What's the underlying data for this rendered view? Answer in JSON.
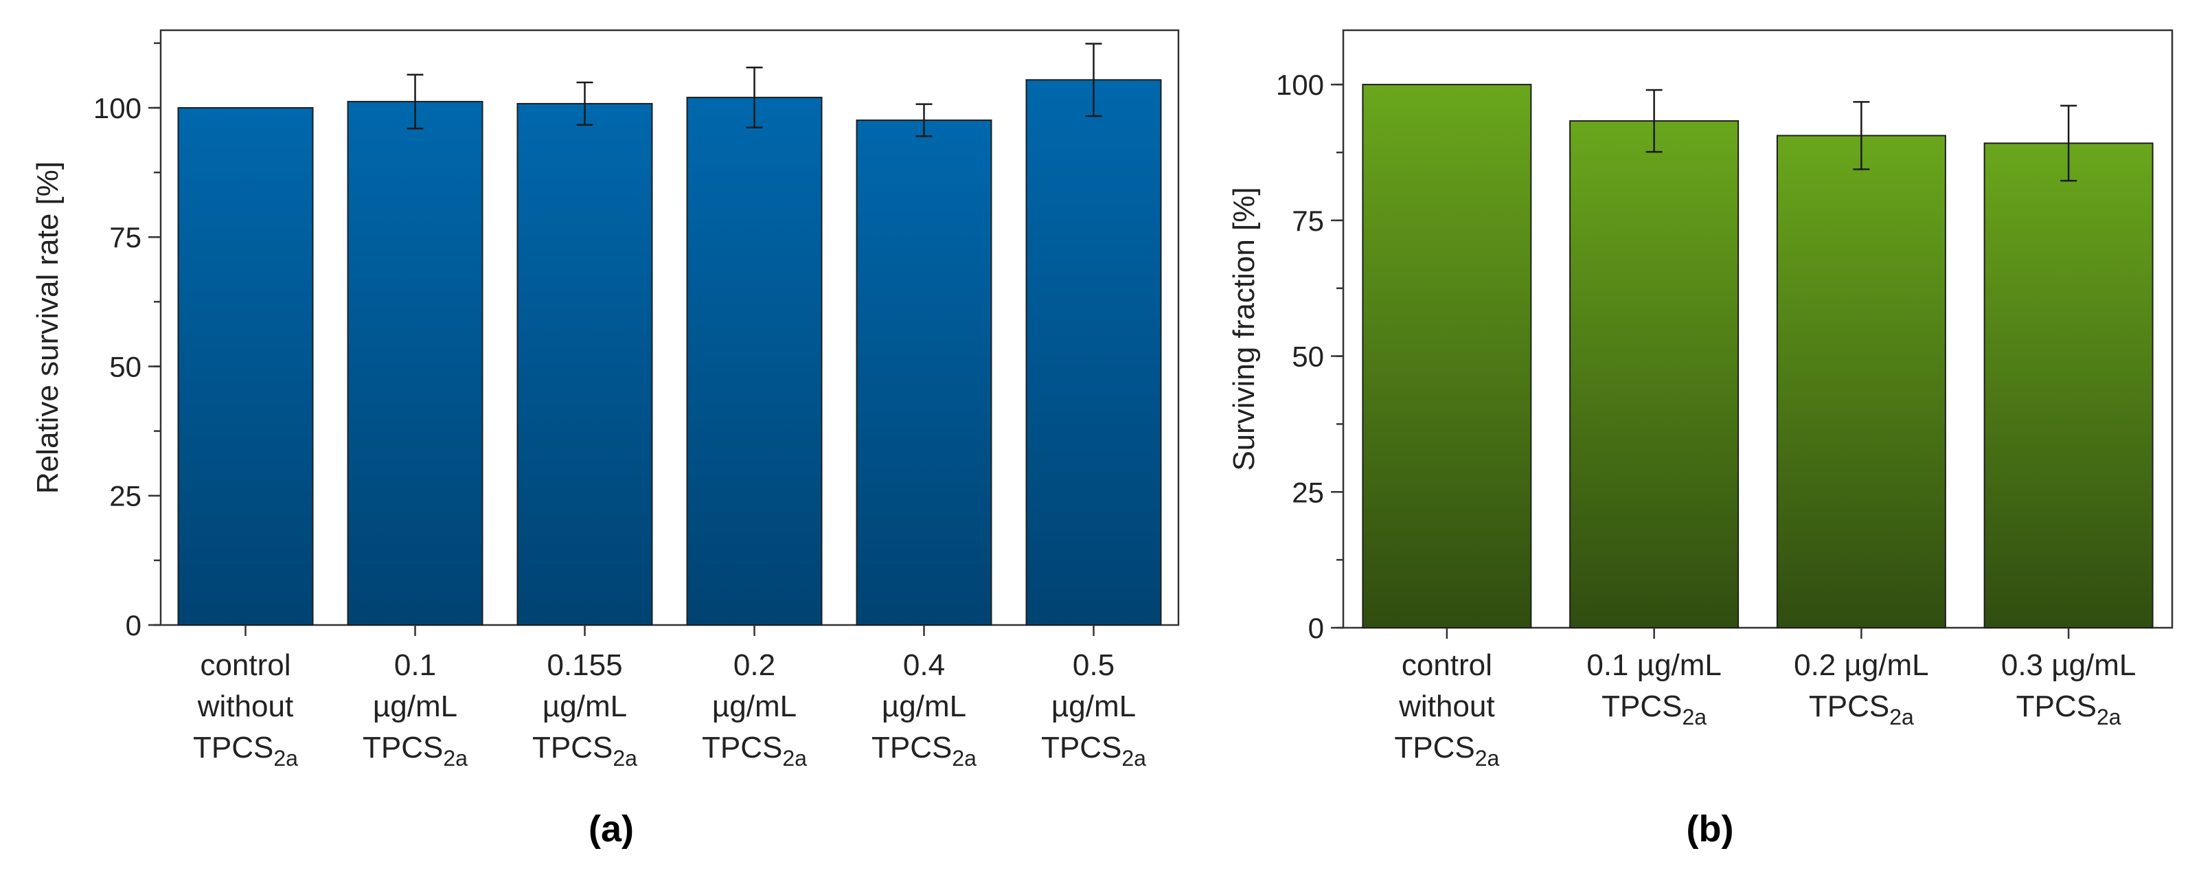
{
  "chart_data": [
    {
      "type": "bar",
      "panel_label": "(a)",
      "ylabel": "Relative survival rate [%]",
      "ylim": [
        0,
        115
      ],
      "yticks": [
        0,
        25,
        50,
        75,
        100
      ],
      "bar_color_top": "#0068ad",
      "bar_color_bottom": "#004372",
      "categories": [
        {
          "lines": [
            "control",
            "without",
            "TPCS"
          ],
          "sub": "2a"
        },
        {
          "lines": [
            "0.1",
            "µg/mL",
            "TPCS"
          ],
          "sub": "2a"
        },
        {
          "lines": [
            "0.155",
            "µg/mL",
            "TPCS"
          ],
          "sub": "2a"
        },
        {
          "lines": [
            "0.2",
            "µg/mL",
            "TPCS"
          ],
          "sub": "2a"
        },
        {
          "lines": [
            "0.4",
            "µg/mL",
            "TPCS"
          ],
          "sub": "2a"
        },
        {
          "lines": [
            "0.5",
            "µg/mL",
            "TPCS"
          ],
          "sub": "2a"
        }
      ],
      "values": [
        100,
        101.2,
        100.8,
        102,
        97.6,
        105.4
      ],
      "errors": [
        0,
        5.2,
        4.1,
        5.8,
        3.1,
        7.0
      ]
    },
    {
      "type": "bar",
      "panel_label": "(b)",
      "ylabel": "Surviving fraction [%]",
      "ylim": [
        0,
        110
      ],
      "yticks": [
        0,
        25,
        50,
        75,
        100
      ],
      "bar_color_top": "#6aa71c",
      "bar_color_bottom": "#304d10",
      "categories": [
        {
          "lines": [
            "control",
            "without",
            "TPCS"
          ],
          "sub": "2a"
        },
        {
          "lines": [
            "0.1 µg/mL",
            "TPCS"
          ],
          "sub": "2a"
        },
        {
          "lines": [
            "0.2 µg/mL",
            "TPCS"
          ],
          "sub": "2a"
        },
        {
          "lines": [
            "0.3 µg/mL",
            "TPCS"
          ],
          "sub": "2a"
        }
      ],
      "values": [
        100,
        93.3,
        90.6,
        89.2
      ],
      "errors": [
        0,
        5.7,
        6.2,
        6.9
      ]
    }
  ]
}
